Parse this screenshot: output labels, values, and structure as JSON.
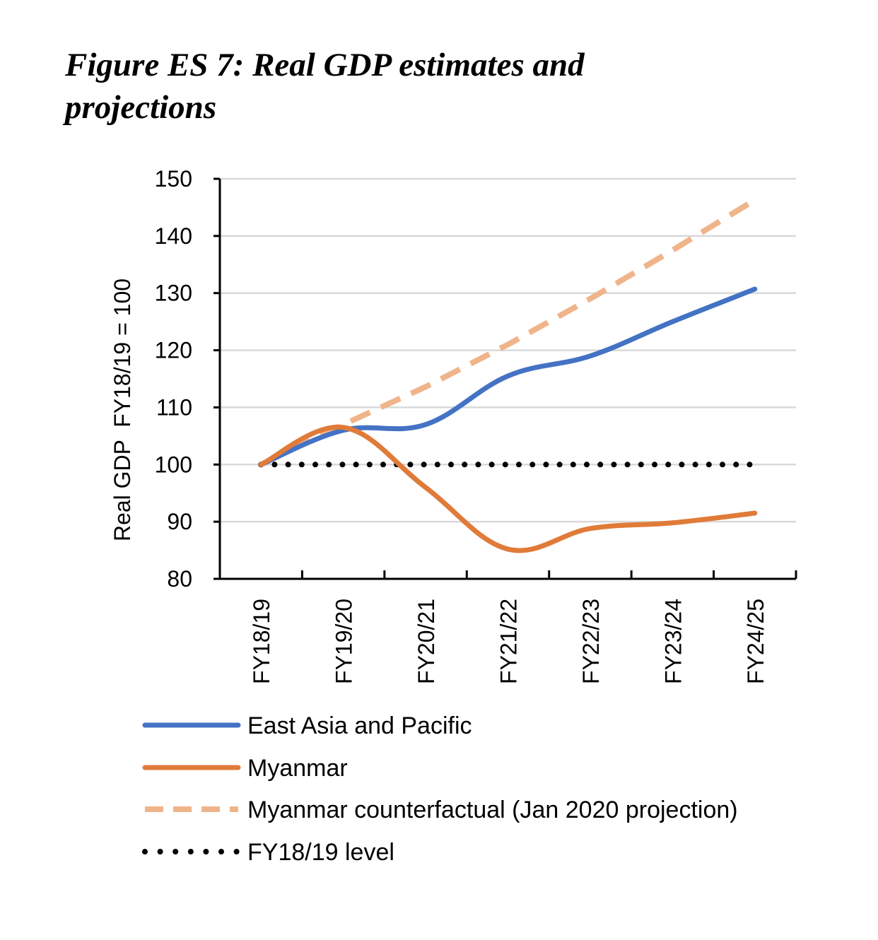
{
  "figure": {
    "title_line1": "Figure ES 7: Real GDP estimates and",
    "title_line2": "projections"
  },
  "colors": {
    "east_asia": "#4472c4",
    "myanmar": "#e07b39",
    "counterfactual": "#f0b48a",
    "baseline": "#000000",
    "grid": "#d9d9d9",
    "axis": "#000000"
  },
  "chart_data": {
    "type": "line",
    "title": "Figure ES 7: Real GDP estimates and projections",
    "xlabel": "",
    "ylabel": "Real GDP  FY18/19 = 100",
    "categories": [
      "FY18/19",
      "FY19/20",
      "FY20/21",
      "FY21/22",
      "FY22/23",
      "FY23/24",
      "FY24/25"
    ],
    "ylim": [
      80,
      150
    ],
    "yticks": [
      80,
      90,
      100,
      110,
      120,
      130,
      140,
      150
    ],
    "grid": true,
    "legend_position": "bottom",
    "series": [
      {
        "name": "East Asia and Pacific",
        "key": "east_asia",
        "style": "solid",
        "values": [
          100,
          106,
          107,
          115.5,
          119,
          125,
          130.7
        ]
      },
      {
        "name": "Myanmar",
        "key": "myanmar",
        "style": "solid",
        "values": [
          100,
          106.5,
          96,
          85.2,
          88.8,
          89.8,
          91.5
        ]
      },
      {
        "name": "Myanmar counterfactual (Jan 2020 projection)",
        "key": "counterfactual",
        "style": "dashed",
        "values": [
          100,
          107,
          113.6,
          121,
          129,
          137.5,
          146.3
        ]
      },
      {
        "name": "FY18/19 level",
        "key": "baseline",
        "style": "dotted",
        "values": [
          100,
          100,
          100,
          100,
          100,
          100,
          100
        ]
      }
    ]
  }
}
